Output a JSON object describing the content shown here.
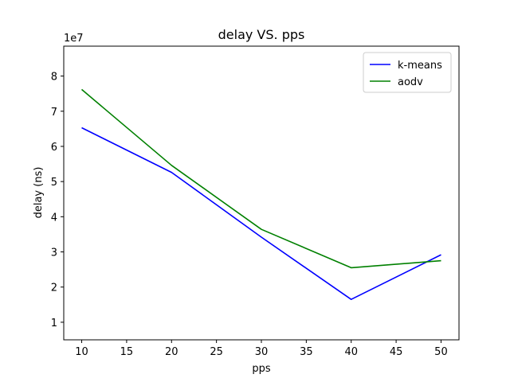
{
  "chart_data": {
    "type": "line",
    "title": "delay VS. pps",
    "xlabel": "pps",
    "ylabel": "delay (ns)",
    "y_scale_label": "1e7",
    "x": [
      10,
      20,
      30,
      40,
      50
    ],
    "xlim": [
      8,
      52
    ],
    "ylim": [
      5000000,
      88500000
    ],
    "x_ticks": [
      10,
      15,
      20,
      25,
      30,
      35,
      40,
      45,
      50
    ],
    "y_ticks": [
      10000000,
      20000000,
      30000000,
      40000000,
      50000000,
      60000000,
      70000000,
      80000000
    ],
    "y_tick_labels": [
      "1",
      "2",
      "3",
      "4",
      "5",
      "6",
      "7",
      "8"
    ],
    "grid": false,
    "legend_position": "top-right",
    "series": [
      {
        "name": "k-means",
        "color": "#0000ff",
        "values": [
          65300000,
          52600000,
          34200000,
          16500000,
          29200000
        ]
      },
      {
        "name": "aodv",
        "color": "#008000",
        "values": [
          76200000,
          54600000,
          36400000,
          25500000,
          27500000
        ]
      }
    ]
  }
}
